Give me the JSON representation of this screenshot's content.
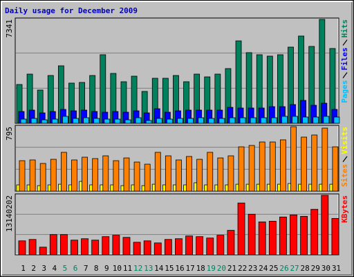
{
  "chart_data": [
    {
      "type": "bar",
      "title": "Daily usage for December 2009",
      "title_color": "#0000c0",
      "ylim": [
        0,
        7341
      ],
      "yticks": [
        7341
      ],
      "series": [
        {
          "name": "Pages",
          "color": "#00c0ff",
          "values": [
            294,
            343,
            245,
            294,
            490,
            343,
            392,
            343,
            294,
            294,
            245,
            392,
            196,
            343,
            294,
            343,
            343,
            392,
            343,
            343,
            392,
            392,
            392,
            392,
            392,
            490,
            490,
            441,
            441,
            490,
            441
          ]
        },
        {
          "name": "Files",
          "color": "#0000ff",
          "values": [
            832,
            930,
            734,
            832,
            979,
            881,
            930,
            832,
            783,
            832,
            783,
            881,
            734,
            1028,
            783,
            881,
            930,
            930,
            930,
            930,
            1126,
            1077,
            1077,
            1077,
            1175,
            1175,
            1321,
            1615,
            1272,
            1419,
            979
          ]
        },
        {
          "name": "Hits",
          "color": "#00805c",
          "values": [
            2741,
            3475,
            2349,
            3377,
            4062,
            2839,
            2887,
            3377,
            4845,
            3524,
            2936,
            3328,
            2251,
            3181,
            3181,
            3377,
            2936,
            3475,
            3279,
            3475,
            3866,
            5824,
            4992,
            4845,
            4747,
            4845,
            5383,
            6166,
            5432,
            7341,
            5285
          ]
        }
      ]
    },
    {
      "type": "bar",
      "ylim": [
        0,
        795
      ],
      "yticks": [
        795
      ],
      "series": [
        {
          "name": "Sites",
          "color": "#ff8000",
          "values": [
            376,
            385,
            342,
            393,
            479,
            385,
            419,
            402,
            436,
            376,
            410,
            359,
            333,
            479,
            436,
            385,
            428,
            393,
            479,
            410,
            436,
            547,
            564,
            607,
            607,
            633,
            795,
            667,
            693,
            778,
            547
          ]
        },
        {
          "name": "Visits",
          "color": "#ffff00",
          "values": [
            77,
            77,
            68,
            77,
            85,
            77,
            120,
            77,
            77,
            77,
            68,
            77,
            68,
            85,
            77,
            77,
            77,
            103,
            77,
            77,
            77,
            85,
            85,
            85,
            85,
            85,
            94,
            85,
            85,
            85,
            85
          ]
        }
      ]
    },
    {
      "type": "bar",
      "ylim": [
        0,
        13140202
      ],
      "yticks": [
        13140202
      ],
      "categories": [
        "1",
        "2",
        "3",
        "4",
        "5",
        "6",
        "7",
        "8",
        "9",
        "10",
        "11",
        "12",
        "13",
        "14",
        "15",
        "16",
        "17",
        "18",
        "19",
        "20",
        "21",
        "22",
        "23",
        "24",
        "25",
        "26",
        "27",
        "28",
        "29",
        "30",
        "31"
      ],
      "category_colors": [
        "#000000",
        "#000000",
        "#000000",
        "#000000",
        "#008060",
        "#008060",
        "#000000",
        "#000000",
        "#000000",
        "#000000",
        "#000000",
        "#008060",
        "#008060",
        "#000000",
        "#000000",
        "#000000",
        "#000000",
        "#000000",
        "#008060",
        "#008060",
        "#000000",
        "#000000",
        "#000000",
        "#000000",
        "#000000",
        "#008060",
        "#008060",
        "#000000",
        "#000000",
        "#000000",
        "#000000"
      ],
      "series": [
        {
          "name": "KBytes",
          "color": "#ff0000",
          "values": [
            3090000,
            3400000,
            1700000,
            4480000,
            4480000,
            3250000,
            3560000,
            3250000,
            4020000,
            4330000,
            3860000,
            2780000,
            3090000,
            2630000,
            3400000,
            3560000,
            4170000,
            4020000,
            3710000,
            4330000,
            5410000,
            11440000,
            8970000,
            7270000,
            7420000,
            8350000,
            8810000,
            8500000,
            10050000,
            13140202,
            8040000
          ]
        }
      ]
    }
  ]
}
